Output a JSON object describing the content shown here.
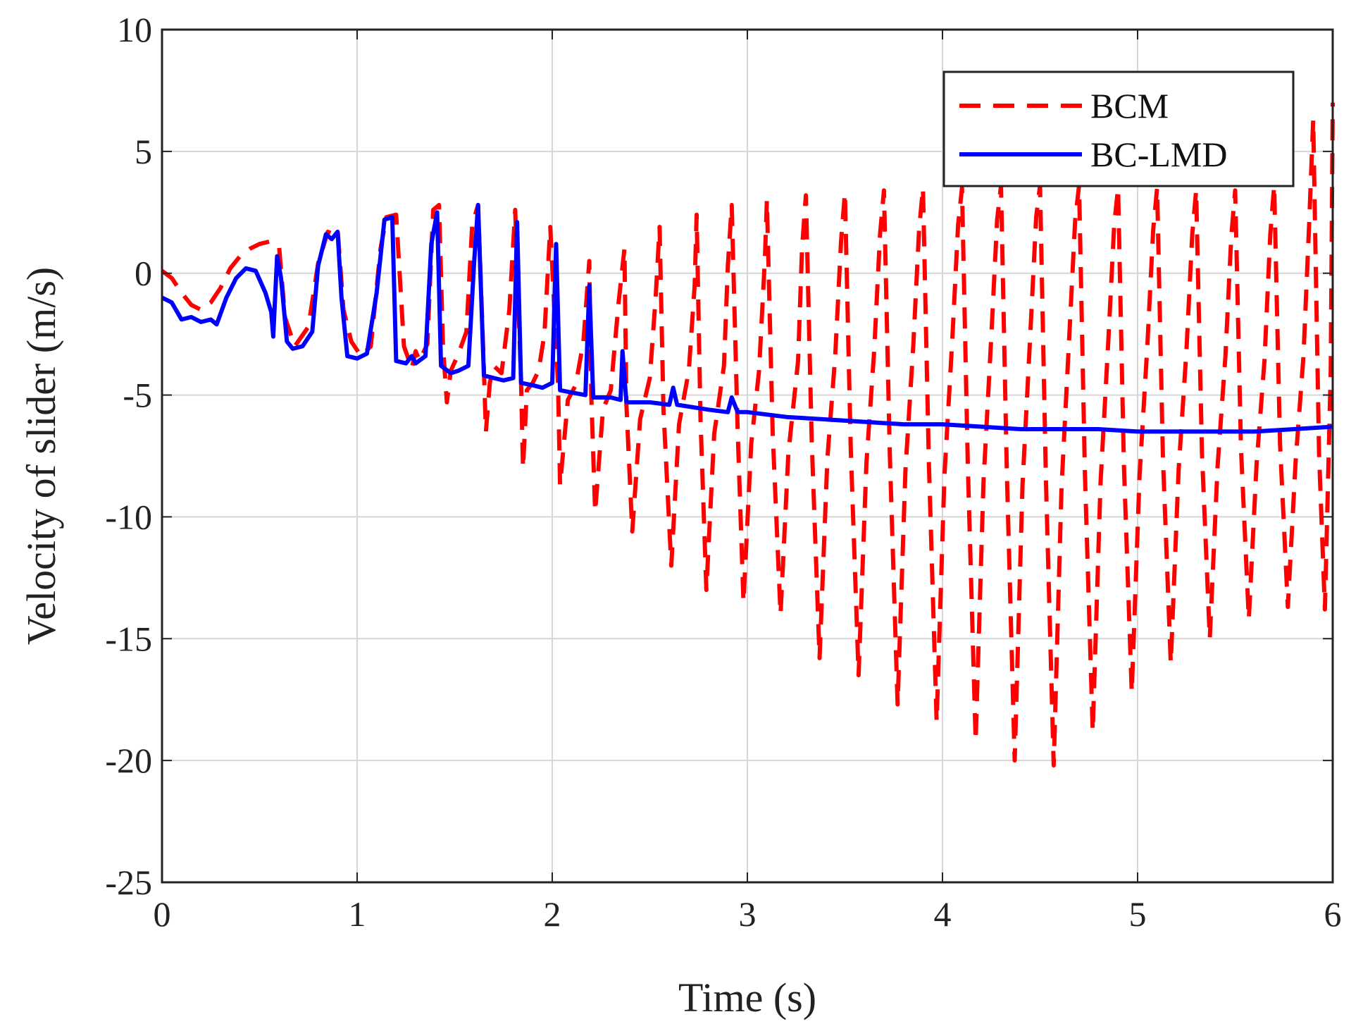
{
  "chart_data": {
    "type": "line",
    "title": "",
    "xlabel": "Time (s)",
    "ylabel": "Velocity of slider (m/s)",
    "xlim": [
      0,
      6
    ],
    "ylim": [
      -25,
      10
    ],
    "grid": true,
    "legend_position": "top-right",
    "x_ticks": [
      0,
      1,
      2,
      3,
      4,
      5,
      6
    ],
    "x_tick_labels": [
      "0",
      "1",
      "2",
      "3",
      "4",
      "5",
      "6"
    ],
    "y_ticks": [
      -25,
      -20,
      -15,
      -10,
      -5,
      0,
      5,
      10
    ],
    "y_tick_labels": [
      "-25",
      "-20",
      "-15",
      "-10",
      "-5",
      "0",
      "5",
      "10"
    ],
    "series": [
      {
        "name": "BCM",
        "color": "#ff0000",
        "style": "dashed",
        "points": [
          [
            0,
            0.1
          ],
          [
            0.05,
            -0.2
          ],
          [
            0.1,
            -0.8
          ],
          [
            0.15,
            -1.3
          ],
          [
            0.2,
            -1.5
          ],
          [
            0.25,
            -1.2
          ],
          [
            0.3,
            -0.6
          ],
          [
            0.35,
            0.2
          ],
          [
            0.4,
            0.7
          ],
          [
            0.45,
            1.0
          ],
          [
            0.5,
            1.2
          ],
          [
            0.55,
            1.3
          ],
          [
            0.6,
            1.1
          ],
          [
            0.63,
            -1.8
          ],
          [
            0.68,
            -3.0
          ],
          [
            0.75,
            -2.2
          ],
          [
            0.8,
            0.4
          ],
          [
            0.85,
            1.7
          ],
          [
            0.88,
            1.6
          ],
          [
            0.9,
            1.8
          ],
          [
            0.93,
            -1.5
          ],
          [
            0.97,
            -2.8
          ],
          [
            1.02,
            -3.4
          ],
          [
            1.07,
            -3.0
          ],
          [
            1.12,
            1.0
          ],
          [
            1.15,
            2.3
          ],
          [
            1.2,
            2.4
          ],
          [
            1.24,
            -3.0
          ],
          [
            1.28,
            -3.9
          ],
          [
            1.3,
            -3.2
          ],
          [
            1.32,
            -3.6
          ],
          [
            1.36,
            -2.9
          ],
          [
            1.39,
            2.6
          ],
          [
            1.42,
            2.8
          ],
          [
            1.44,
            -3.0
          ],
          [
            1.46,
            -5.3
          ],
          [
            1.48,
            -4.0
          ],
          [
            1.52,
            -3.3
          ],
          [
            1.56,
            -2.4
          ],
          [
            1.59,
            2.0
          ],
          [
            1.62,
            2.8
          ],
          [
            1.65,
            -4.0
          ],
          [
            1.66,
            -6.5
          ],
          [
            1.68,
            -4.5
          ],
          [
            1.7,
            -3.8
          ],
          [
            1.74,
            -4.1
          ],
          [
            1.78,
            -1.5
          ],
          [
            1.81,
            2.6
          ],
          [
            1.84,
            -4.4
          ],
          [
            1.85,
            -8.0
          ],
          [
            1.87,
            -4.8
          ],
          [
            1.9,
            -4.5
          ],
          [
            1.93,
            -4.0
          ],
          [
            1.96,
            -2.5
          ],
          [
            1.99,
            1.9
          ],
          [
            2.03,
            -4.6
          ],
          [
            2.04,
            -8.7
          ],
          [
            2.08,
            -5.2
          ],
          [
            2.12,
            -4.6
          ],
          [
            2.16,
            -2.8
          ],
          [
            2.19,
            0.5
          ],
          [
            2.2,
            -5.0
          ],
          [
            2.22,
            -9.8
          ],
          [
            2.26,
            -5.6
          ],
          [
            2.3,
            -4.8
          ],
          [
            2.34,
            -1.2
          ],
          [
            2.37,
            1.0
          ],
          [
            2.38,
            -5.4
          ],
          [
            2.41,
            -10.6
          ],
          [
            2.45,
            -6.0
          ],
          [
            2.5,
            -4.3
          ],
          [
            2.53,
            -1.0
          ],
          [
            2.55,
            1.9
          ],
          [
            2.57,
            -5.6
          ],
          [
            2.61,
            -12.0
          ],
          [
            2.65,
            -6.2
          ],
          [
            2.7,
            -4.0
          ],
          [
            2.73,
            -0.5
          ],
          [
            2.74,
            2.4
          ],
          [
            2.76,
            -6.0
          ],
          [
            2.79,
            -13.0
          ],
          [
            2.83,
            -6.6
          ],
          [
            2.88,
            -3.8
          ],
          [
            2.9,
            0.3
          ],
          [
            2.92,
            2.8
          ],
          [
            2.95,
            -6.4
          ],
          [
            2.98,
            -13.5
          ],
          [
            3.02,
            -7.0
          ],
          [
            3.06,
            -4.0
          ],
          [
            3.09,
            0.6
          ],
          [
            3.1,
            3.0
          ],
          [
            3.13,
            -6.6
          ],
          [
            3.17,
            -14.0
          ],
          [
            3.21,
            -7.4
          ],
          [
            3.26,
            -3.6
          ],
          [
            3.28,
            1.0
          ],
          [
            3.3,
            3.2
          ],
          [
            3.33,
            -6.9
          ],
          [
            3.37,
            -15.8
          ],
          [
            3.41,
            -7.6
          ],
          [
            3.45,
            -3.4
          ],
          [
            3.48,
            1.3
          ],
          [
            3.5,
            3.3
          ],
          [
            3.53,
            -7.2
          ],
          [
            3.57,
            -16.5
          ],
          [
            3.61,
            -7.8
          ],
          [
            3.65,
            -3.2
          ],
          [
            3.68,
            1.6
          ],
          [
            3.7,
            3.4
          ],
          [
            3.73,
            -7.4
          ],
          [
            3.77,
            -17.7
          ],
          [
            3.81,
            -8.1
          ],
          [
            3.85,
            -3.0
          ],
          [
            3.88,
            1.8
          ],
          [
            3.9,
            3.5
          ],
          [
            3.93,
            -7.7
          ],
          [
            3.97,
            -18.4
          ],
          [
            4.01,
            -8.3
          ],
          [
            4.05,
            -2.8
          ],
          [
            4.08,
            2.0
          ],
          [
            4.1,
            3.5
          ],
          [
            4.13,
            -7.9
          ],
          [
            4.17,
            -19.2
          ],
          [
            4.21,
            -8.6
          ],
          [
            4.25,
            -2.6
          ],
          [
            4.28,
            2.2
          ],
          [
            4.3,
            3.6
          ],
          [
            4.33,
            -8.2
          ],
          [
            4.37,
            -20.0
          ],
          [
            4.41,
            -8.7
          ],
          [
            4.45,
            -2.5
          ],
          [
            4.48,
            2.3
          ],
          [
            4.5,
            3.6
          ],
          [
            4.53,
            -8.4
          ],
          [
            4.57,
            -20.2
          ],
          [
            4.61,
            -8.8
          ],
          [
            4.65,
            -2.6
          ],
          [
            4.68,
            2.2
          ],
          [
            4.7,
            3.6
          ],
          [
            4.73,
            -8.2
          ],
          [
            4.77,
            -18.8
          ],
          [
            4.81,
            -8.6
          ],
          [
            4.85,
            -2.8
          ],
          [
            4.88,
            2.0
          ],
          [
            4.9,
            3.5
          ],
          [
            4.93,
            -7.9
          ],
          [
            4.97,
            -17.2
          ],
          [
            5.01,
            -8.3
          ],
          [
            5.05,
            -3.0
          ],
          [
            5.08,
            1.8
          ],
          [
            5.1,
            3.5
          ],
          [
            5.13,
            -7.6
          ],
          [
            5.17,
            -16.0
          ],
          [
            5.21,
            -8.1
          ],
          [
            5.25,
            -3.2
          ],
          [
            5.28,
            1.6
          ],
          [
            5.3,
            3.4
          ],
          [
            5.33,
            -7.4
          ],
          [
            5.37,
            -15.0
          ],
          [
            5.41,
            -7.9
          ],
          [
            5.45,
            -3.4
          ],
          [
            5.48,
            1.5
          ],
          [
            5.5,
            3.4
          ],
          [
            5.53,
            -7.2
          ],
          [
            5.57,
            -14.2
          ],
          [
            5.61,
            -7.8
          ],
          [
            5.65,
            -3.6
          ],
          [
            5.68,
            1.6
          ],
          [
            5.7,
            3.6
          ],
          [
            5.73,
            -7.0
          ],
          [
            5.77,
            -13.7
          ],
          [
            5.81,
            -7.7
          ],
          [
            5.85,
            -3.4
          ],
          [
            5.88,
            2.2
          ],
          [
            5.9,
            6.3
          ],
          [
            5.93,
            -7.4
          ],
          [
            5.96,
            -13.8
          ],
          [
            5.99,
            -4.0
          ],
          [
            6.0,
            7.0
          ]
        ]
      },
      {
        "name": "BC-LMD",
        "color": "#0000ff",
        "style": "solid",
        "points": [
          [
            0,
            -1.0
          ],
          [
            0.05,
            -1.2
          ],
          [
            0.1,
            -1.9
          ],
          [
            0.15,
            -1.8
          ],
          [
            0.2,
            -2.0
          ],
          [
            0.25,
            -1.9
          ],
          [
            0.28,
            -2.1
          ],
          [
            0.33,
            -1.0
          ],
          [
            0.38,
            -0.2
          ],
          [
            0.43,
            0.2
          ],
          [
            0.48,
            0.1
          ],
          [
            0.53,
            -0.8
          ],
          [
            0.56,
            -1.6
          ],
          [
            0.57,
            -2.6
          ],
          [
            0.59,
            0.7
          ],
          [
            0.61,
            -0.2
          ],
          [
            0.64,
            -2.8
          ],
          [
            0.67,
            -3.1
          ],
          [
            0.72,
            -3.0
          ],
          [
            0.77,
            -2.4
          ],
          [
            0.8,
            0.3
          ],
          [
            0.84,
            1.6
          ],
          [
            0.87,
            1.4
          ],
          [
            0.9,
            1.7
          ],
          [
            0.92,
            -1.0
          ],
          [
            0.95,
            -3.4
          ],
          [
            1.0,
            -3.5
          ],
          [
            1.05,
            -3.3
          ],
          [
            1.1,
            -0.8
          ],
          [
            1.14,
            2.2
          ],
          [
            1.18,
            2.3
          ],
          [
            1.2,
            -3.6
          ],
          [
            1.25,
            -3.7
          ],
          [
            1.28,
            -3.4
          ],
          [
            1.3,
            -3.7
          ],
          [
            1.35,
            -3.4
          ],
          [
            1.38,
            1.2
          ],
          [
            1.41,
            2.5
          ],
          [
            1.43,
            -3.8
          ],
          [
            1.48,
            -4.1
          ],
          [
            1.52,
            -4.0
          ],
          [
            1.57,
            -3.8
          ],
          [
            1.6,
            0.5
          ],
          [
            1.62,
            2.8
          ],
          [
            1.65,
            -4.2
          ],
          [
            1.7,
            -4.3
          ],
          [
            1.75,
            -4.4
          ],
          [
            1.8,
            -4.3
          ],
          [
            1.82,
            2.1
          ],
          [
            1.84,
            -4.5
          ],
          [
            1.9,
            -4.6
          ],
          [
            1.95,
            -4.7
          ],
          [
            2.0,
            -4.5
          ],
          [
            2.02,
            1.2
          ],
          [
            2.04,
            -4.8
          ],
          [
            2.1,
            -4.9
          ],
          [
            2.17,
            -5.0
          ],
          [
            2.19,
            -0.5
          ],
          [
            2.21,
            -5.1
          ],
          [
            2.3,
            -5.1
          ],
          [
            2.35,
            -5.2
          ],
          [
            2.36,
            -3.2
          ],
          [
            2.38,
            -5.3
          ],
          [
            2.5,
            -5.3
          ],
          [
            2.6,
            -5.4
          ],
          [
            2.62,
            -4.7
          ],
          [
            2.64,
            -5.4
          ],
          [
            2.8,
            -5.6
          ],
          [
            2.9,
            -5.7
          ],
          [
            2.92,
            -5.1
          ],
          [
            2.95,
            -5.7
          ],
          [
            3.0,
            -5.7
          ],
          [
            3.2,
            -5.9
          ],
          [
            3.4,
            -6.0
          ],
          [
            3.6,
            -6.1
          ],
          [
            3.8,
            -6.2
          ],
          [
            4.0,
            -6.2
          ],
          [
            4.2,
            -6.3
          ],
          [
            4.4,
            -6.4
          ],
          [
            4.6,
            -6.4
          ],
          [
            4.8,
            -6.4
          ],
          [
            5.0,
            -6.5
          ],
          [
            5.2,
            -6.5
          ],
          [
            5.4,
            -6.5
          ],
          [
            5.6,
            -6.5
          ],
          [
            5.8,
            -6.4
          ],
          [
            6.0,
            -6.3
          ]
        ]
      }
    ]
  }
}
